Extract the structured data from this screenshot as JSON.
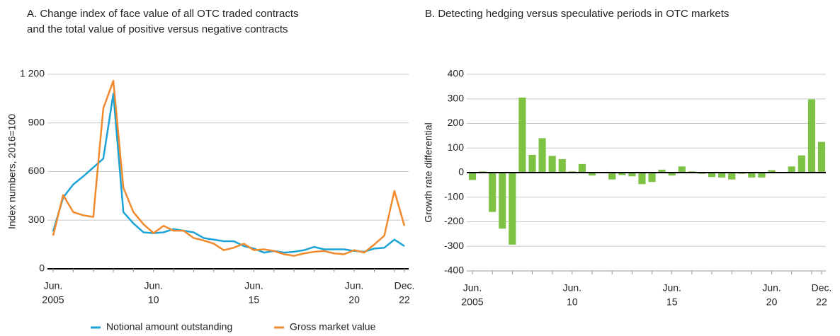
{
  "chart_data": [
    {
      "type": "line",
      "title": [
        "A.  Change index of face value of all OTC traded contracts",
        "and the total value of positive versus negative contracts"
      ],
      "y_label": "Index numbers, 2016=100",
      "categories": [
        [
          "Jun.",
          "2005"
        ],
        null,
        null,
        null,
        null,
        null,
        null,
        null,
        null,
        null,
        [
          "Jun.",
          "10"
        ],
        null,
        null,
        null,
        null,
        null,
        null,
        null,
        null,
        null,
        [
          "Jun.",
          "15"
        ],
        null,
        null,
        null,
        null,
        null,
        null,
        null,
        null,
        null,
        [
          "Jun.",
          "20"
        ],
        null,
        null,
        null,
        null,
        [
          "Dec.",
          "22"
        ]
      ],
      "series": [
        {
          "name": "Notional amount outstanding",
          "color": "#1ba3d6",
          "values": [
            230,
            440,
            520,
            570,
            625,
            680,
            1080,
            350,
            280,
            225,
            220,
            225,
            245,
            235,
            225,
            190,
            180,
            170,
            170,
            140,
            125,
            100,
            110,
            100,
            105,
            115,
            135,
            120,
            120,
            120,
            110,
            105,
            125,
            130,
            180,
            140
          ]
        },
        {
          "name": "Gross market value",
          "color": "#f08a2c",
          "values": [
            205,
            455,
            350,
            330,
            320,
            990,
            1160,
            500,
            350,
            275,
            220,
            265,
            235,
            235,
            190,
            175,
            155,
            115,
            130,
            155,
            115,
            120,
            110,
            90,
            80,
            95,
            105,
            110,
            95,
            90,
            115,
            100,
            150,
            205,
            480,
            265
          ]
        }
      ],
      "ylim": [
        0,
        1200
      ],
      "yticks": [
        0,
        300,
        600,
        900,
        {
          "value": 1200,
          "label": "1 200"
        }
      ],
      "grid": true,
      "legend": "bottom"
    },
    {
      "type": "bar",
      "title": [
        "B.  Detecting hedging versus speculative periods in OTC markets"
      ],
      "y_label": "Growth rate differential",
      "categories": [
        [
          "Jun.",
          "2005"
        ],
        null,
        null,
        null,
        null,
        null,
        null,
        null,
        null,
        null,
        [
          "Jun.",
          "10"
        ],
        null,
        null,
        null,
        null,
        null,
        null,
        null,
        null,
        null,
        [
          "Jun.",
          "15"
        ],
        null,
        null,
        null,
        null,
        null,
        null,
        null,
        null,
        null,
        [
          "Jun.",
          "20"
        ],
        null,
        null,
        null,
        null,
        [
          "Dec.",
          "22"
        ]
      ],
      "values": [
        -30,
        5,
        -160,
        -228,
        -293,
        305,
        72,
        140,
        68,
        55,
        5,
        35,
        -12,
        0,
        -28,
        -10,
        -15,
        -47,
        -38,
        12,
        -12,
        25,
        5,
        -5,
        -18,
        -20,
        -28,
        -5,
        -20,
        -20,
        10,
        0,
        25,
        70,
        298,
        125
      ],
      "color": "#7dc242",
      "ylim": [
        -400,
        400
      ],
      "yticks": [
        -400,
        -300,
        -200,
        -100,
        0,
        100,
        200,
        300,
        400
      ],
      "grid": true
    }
  ]
}
